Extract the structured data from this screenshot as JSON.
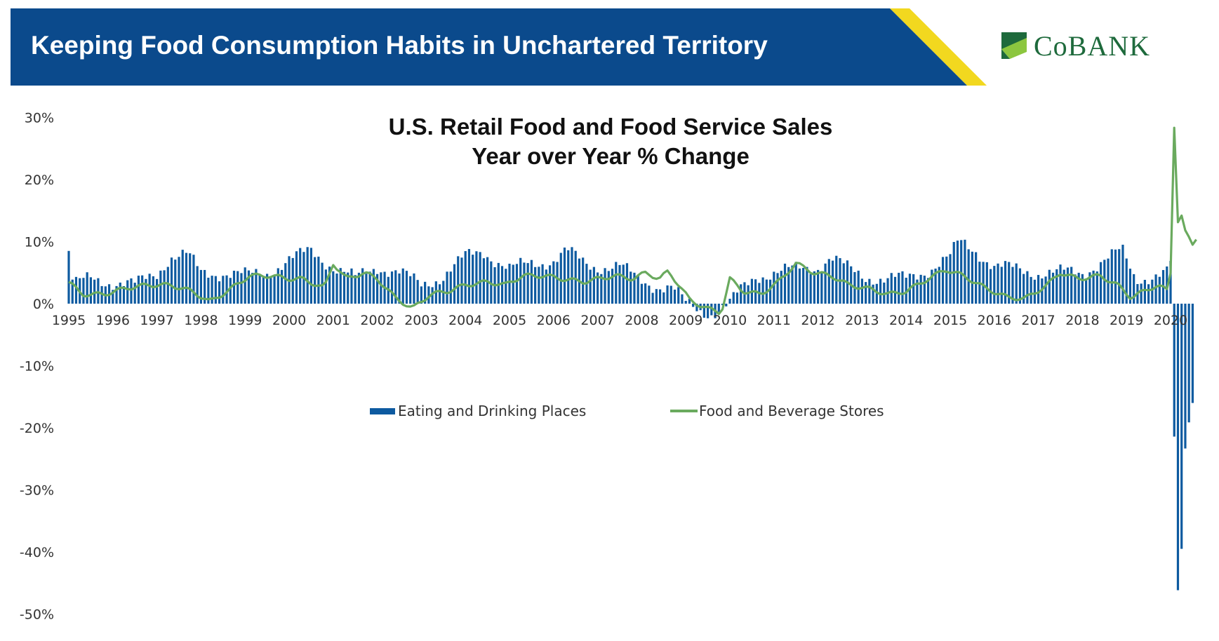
{
  "header": {
    "title": "Keeping Food Consumption Habits in Unchartered Territory",
    "logo_text": "CoBANK",
    "banner_color": "#0b4a8c",
    "accent_color": "#f2d81f"
  },
  "chart_data": {
    "type": "bar",
    "title_lines": [
      "U.S. Retail Food and Food Service Sales",
      "Year over Year % Change"
    ],
    "x_tick_labels": [
      "1995",
      "1996",
      "1997",
      "1998",
      "1999",
      "2000",
      "2001",
      "2002",
      "2003",
      "2004",
      "2005",
      "2006",
      "2007",
      "2008",
      "2009",
      "2010",
      "2011",
      "2012",
      "2013",
      "2014",
      "2015",
      "2016",
      "2017",
      "2018",
      "2019",
      "2020"
    ],
    "y_tick_labels": [
      "30%",
      "20%",
      "10%",
      "0%",
      "-10%",
      "-20%",
      "-30%",
      "-40%",
      "-50%"
    ],
    "y_ticks": [
      30,
      20,
      10,
      0,
      -10,
      -20,
      -30,
      -40,
      -50
    ],
    "ylim": [
      -50,
      30
    ],
    "x_start": 1995.0,
    "legend_position": "center",
    "series": [
      {
        "name": "Eating and Drinking Places",
        "kind": "bar",
        "color": "#0d5aa0",
        "keyframes": [
          [
            1995.0,
            8.5
          ],
          [
            1995.1,
            3
          ],
          [
            1995.5,
            4
          ],
          [
            1996.0,
            3.5
          ],
          [
            1996.5,
            3
          ],
          [
            1997.0,
            5
          ],
          [
            1997.3,
            7.5
          ],
          [
            1997.7,
            7.8
          ],
          [
            1998.0,
            5
          ],
          [
            1998.5,
            5
          ],
          [
            1999.0,
            4.5
          ],
          [
            1999.5,
            5
          ],
          [
            2000.0,
            7
          ],
          [
            2000.5,
            8.5
          ],
          [
            2001.0,
            6
          ],
          [
            2001.5,
            4
          ],
          [
            2002.0,
            6
          ],
          [
            2002.5,
            5
          ],
          [
            2003.0,
            3
          ],
          [
            2003.5,
            4.5
          ],
          [
            2004.0,
            7.5
          ],
          [
            2004.4,
            8.5
          ],
          [
            2004.8,
            6.5
          ],
          [
            2005.0,
            5.5
          ],
          [
            2005.5,
            6.5
          ],
          [
            2006.0,
            7
          ],
          [
            2006.3,
            8.5
          ],
          [
            2006.7,
            6.5
          ],
          [
            2007.0,
            6
          ],
          [
            2007.5,
            6
          ],
          [
            2007.9,
            4
          ],
          [
            2008.3,
            3
          ],
          [
            2008.7,
            2.5
          ],
          [
            2009.0,
            0
          ],
          [
            2009.3,
            -1
          ],
          [
            2009.6,
            -1.5
          ],
          [
            2010.0,
            0
          ],
          [
            2010.3,
            2.5
          ],
          [
            2010.6,
            4.5
          ],
          [
            2011.0,
            5
          ],
          [
            2011.5,
            5.5
          ],
          [
            2012.0,
            6
          ],
          [
            2012.3,
            7.5
          ],
          [
            2012.7,
            5.5
          ],
          [
            2013.0,
            4.5
          ],
          [
            2013.5,
            4
          ],
          [
            2014.0,
            4
          ],
          [
            2014.5,
            5.5
          ],
          [
            2015.0,
            7.5
          ],
          [
            2015.2,
            10
          ],
          [
            2015.6,
            8.5
          ],
          [
            2016.0,
            6
          ],
          [
            2016.5,
            5.5
          ],
          [
            2017.0,
            5
          ],
          [
            2017.5,
            5
          ],
          [
            2018.0,
            5
          ],
          [
            2018.5,
            7
          ],
          [
            2018.9,
            8.5
          ],
          [
            2019.2,
            4
          ],
          [
            2019.6,
            4.5
          ],
          [
            2019.95,
            5
          ],
          [
            2020.0,
            6.5
          ],
          [
            2020.1,
            -27
          ],
          [
            2020.18,
            -50
          ],
          [
            2020.26,
            -38
          ],
          [
            2020.34,
            -22
          ],
          [
            2020.42,
            -19
          ],
          [
            2020.5,
            -16
          ],
          [
            2020.58,
            -14.5
          ]
        ]
      },
      {
        "name": "Food and Beverage Stores",
        "kind": "line",
        "color": "#6aaa5e",
        "keyframes": [
          [
            1995.0,
            3.5
          ],
          [
            1995.3,
            1.5
          ],
          [
            1995.8,
            1.5
          ],
          [
            1996.3,
            2.5
          ],
          [
            1996.8,
            3
          ],
          [
            1997.3,
            3
          ],
          [
            1997.8,
            2
          ],
          [
            1998.2,
            0.3
          ],
          [
            1998.6,
            2
          ],
          [
            1999.1,
            4.5
          ],
          [
            1999.6,
            4.5
          ],
          [
            2000.0,
            4
          ],
          [
            2000.3,
            4
          ],
          [
            2000.8,
            2.5
          ],
          [
            2001.0,
            6.5
          ],
          [
            2001.3,
            4
          ],
          [
            2001.7,
            5
          ],
          [
            2002.0,
            4
          ],
          [
            2002.4,
            1
          ],
          [
            2002.8,
            -0.8
          ],
          [
            2003.2,
            1.5
          ],
          [
            2003.6,
            2
          ],
          [
            2004.0,
            3
          ],
          [
            2004.5,
            3.5
          ],
          [
            2004.9,
            3
          ],
          [
            2005.3,
            4.5
          ],
          [
            2005.8,
            4.5
          ],
          [
            2006.2,
            4
          ],
          [
            2006.7,
            3.5
          ],
          [
            2007.0,
            4
          ],
          [
            2007.4,
            4.5
          ],
          [
            2007.8,
            4
          ],
          [
            2008.1,
            5
          ],
          [
            2008.4,
            4
          ],
          [
            2008.6,
            5.2
          ],
          [
            2008.85,
            3
          ],
          [
            2009.1,
            0.5
          ],
          [
            2009.5,
            -0.8
          ],
          [
            2009.8,
            -1.5
          ],
          [
            2010.0,
            4
          ],
          [
            2010.3,
            2
          ],
          [
            2010.7,
            1.5
          ],
          [
            2011.1,
            3.5
          ],
          [
            2011.5,
            6.5
          ],
          [
            2011.9,
            5
          ],
          [
            2012.3,
            4.5
          ],
          [
            2012.7,
            3
          ],
          [
            2013.1,
            2.5
          ],
          [
            2013.6,
            1.5
          ],
          [
            2014.0,
            2
          ],
          [
            2014.5,
            4
          ],
          [
            2014.9,
            5.5
          ],
          [
            2015.3,
            4.5
          ],
          [
            2015.8,
            2.5
          ],
          [
            2016.3,
            1
          ],
          [
            2016.7,
            0.8
          ],
          [
            2017.2,
            3
          ],
          [
            2017.5,
            5
          ],
          [
            2017.9,
            4
          ],
          [
            2018.4,
            4.5
          ],
          [
            2018.8,
            3
          ],
          [
            2019.1,
            1
          ],
          [
            2019.4,
            2
          ],
          [
            2019.7,
            3
          ],
          [
            2019.95,
            2
          ],
          [
            2020.0,
            5
          ],
          [
            2020.08,
            29
          ],
          [
            2020.16,
            13
          ],
          [
            2020.24,
            14.5
          ],
          [
            2020.32,
            12
          ],
          [
            2020.4,
            11
          ],
          [
            2020.5,
            9.5
          ],
          [
            2020.6,
            10.5
          ]
        ]
      }
    ]
  }
}
